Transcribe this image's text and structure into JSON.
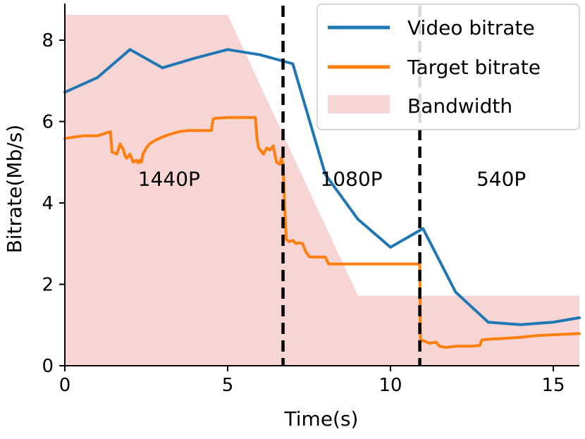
{
  "chart_data": {
    "type": "line",
    "xlabel": "Time(s)",
    "ylabel": "Bitrate(Mb/s)",
    "xlim": [
      0,
      15.8
    ],
    "ylim": [
      0,
      8.9
    ],
    "xticks": [
      0,
      5,
      10,
      15
    ],
    "yticks": [
      0,
      2,
      4,
      6,
      8
    ],
    "legend_position": "top-right",
    "grid": false,
    "colors": {
      "video": "#1f77b4",
      "target": "#ff7f0e",
      "bandwidth": "#f8d5d5",
      "marker": "#000000"
    },
    "series": [
      {
        "name": "Video bitrate",
        "type": "line",
        "x": [
          0,
          1,
          2,
          3,
          4,
          5,
          6,
          7,
          8,
          9,
          10,
          11,
          12,
          13,
          14,
          15,
          15.8
        ],
        "y": [
          6.72,
          7.08,
          7.77,
          7.32,
          7.56,
          7.77,
          7.64,
          7.42,
          4.7,
          3.6,
          2.91,
          3.37,
          1.81,
          1.07,
          1.01,
          1.07,
          1.18
        ]
      },
      {
        "name": "Target bitrate",
        "type": "line",
        "x": [
          0,
          0.3,
          0.6,
          1.0,
          1.2,
          1.4,
          1.45,
          1.6,
          1.7,
          1.8,
          1.85,
          1.9,
          2.0,
          2.05,
          2.1,
          2.2,
          2.25,
          2.3,
          2.35,
          2.4,
          2.5,
          2.6,
          2.8,
          3.0,
          3.2,
          3.5,
          3.8,
          4.2,
          4.5,
          4.55,
          4.6,
          5.0,
          5.5,
          5.85,
          5.9,
          5.95,
          6.0,
          6.1,
          6.2,
          6.3,
          6.4,
          6.5,
          6.6,
          6.65,
          6.7,
          6.75,
          6.8,
          6.9,
          7.0,
          7.1,
          7.2,
          7.3,
          7.4,
          7.5,
          7.6,
          7.7,
          8.0,
          8.1,
          8.5,
          9.0,
          9.5,
          10.0,
          10.5,
          10.9,
          10.92,
          11.0,
          11.2,
          11.4,
          11.5,
          11.7,
          12.0,
          12.5,
          12.75,
          12.8,
          13.0,
          13.5,
          14.0,
          14.5,
          15.0,
          15.5,
          15.8
        ],
        "y": [
          5.58,
          5.62,
          5.65,
          5.65,
          5.7,
          5.75,
          5.25,
          5.2,
          5.45,
          5.3,
          5.15,
          5.1,
          5.2,
          5.1,
          5.0,
          5.05,
          4.98,
          5.05,
          5.0,
          5.2,
          5.35,
          5.45,
          5.55,
          5.62,
          5.68,
          5.75,
          5.78,
          5.78,
          5.78,
          6.05,
          6.08,
          6.1,
          6.1,
          6.1,
          5.6,
          5.35,
          5.3,
          5.2,
          5.35,
          5.3,
          5.4,
          5.0,
          4.95,
          5.1,
          4.95,
          3.9,
          3.1,
          3.05,
          3.08,
          3.0,
          3.02,
          3.0,
          2.8,
          2.68,
          2.67,
          2.67,
          2.67,
          2.5,
          2.5,
          2.5,
          2.5,
          2.5,
          2.5,
          2.5,
          0.6,
          0.62,
          0.55,
          0.58,
          0.48,
          0.45,
          0.48,
          0.48,
          0.5,
          0.63,
          0.65,
          0.67,
          0.7,
          0.74,
          0.76,
          0.78,
          0.79
        ]
      },
      {
        "name": "Bandwidth",
        "type": "area",
        "x": [
          0,
          5,
          9,
          15.8
        ],
        "y": [
          8.62,
          8.62,
          1.72,
          1.72
        ]
      }
    ],
    "vlines": [
      6.7,
      10.9
    ],
    "annotations": [
      {
        "text": "1440P",
        "x": 3.2,
        "y": 4.6
      },
      {
        "text": "1080P",
        "x": 8.8,
        "y": 4.6
      },
      {
        "text": "540P",
        "x": 13.4,
        "y": 4.6
      }
    ]
  }
}
